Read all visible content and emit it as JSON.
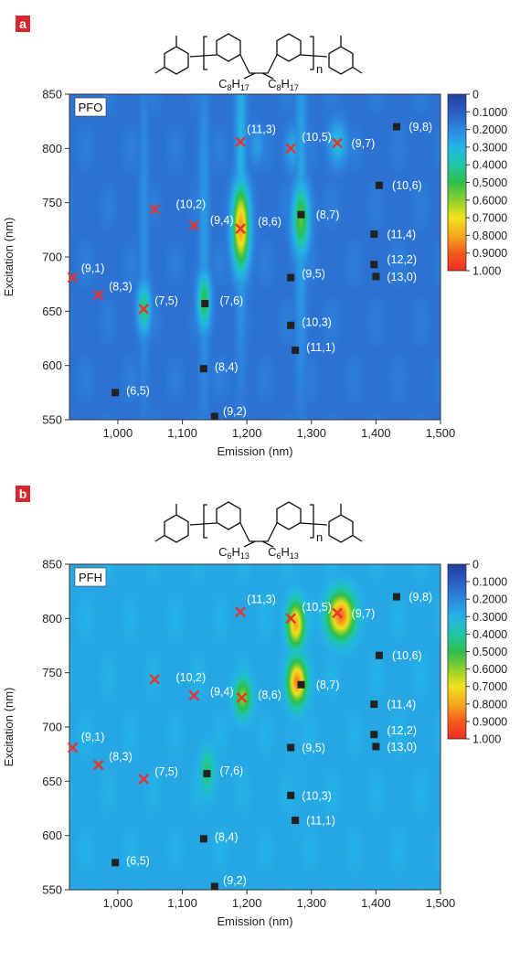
{
  "panels": [
    {
      "letter": "a",
      "sample_label": "PFO",
      "chem_subst": [
        "C8H17",
        "C8H17"
      ],
      "repeat_label": "n",
      "chart_data": {
        "type": "heatmap",
        "xlabel": "Emission (nm)",
        "ylabel": "Excitation (nm)",
        "xlim": [
          925,
          1500
        ],
        "ylim": [
          550,
          850
        ],
        "xticks": [
          1000,
          1100,
          1200,
          1300,
          1400,
          1500
        ],
        "xtick_labels": [
          "1,000",
          "1,100",
          "1,200",
          "1,300",
          "1,400",
          "1,500"
        ],
        "yticks": [
          550,
          600,
          650,
          700,
          750,
          800,
          850
        ],
        "ytick_labels": [
          "550",
          "600",
          "650",
          "700",
          "750",
          "800",
          "850"
        ],
        "colorbar": {
          "ticks": [
            0,
            0.1,
            0.2,
            0.3,
            0.4,
            0.5,
            0.6,
            0.7,
            0.8,
            0.9,
            1.0
          ],
          "tick_labels": [
            "0",
            "0.1000",
            "0.2000",
            "0.3000",
            "0.4000",
            "0.5000",
            "0.6000",
            "0.7000",
            "0.8000",
            "0.9000",
            "1.000"
          ]
        },
        "background_level": 0.15,
        "peaks": [
          {
            "x": 1190,
            "y": 728,
            "level": 0.82,
            "sx": 9,
            "sy": 26
          },
          {
            "x": 1283,
            "y": 735,
            "level": 0.55,
            "sx": 9,
            "sy": 22
          },
          {
            "x": 1133,
            "y": 660,
            "level": 0.5,
            "sx": 7,
            "sy": 18
          },
          {
            "x": 1040,
            "y": 653,
            "level": 0.45,
            "sx": 7,
            "sy": 16
          },
          {
            "x": 1340,
            "y": 805,
            "level": 0.33,
            "sx": 10,
            "sy": 14
          },
          {
            "x": 1270,
            "y": 800,
            "level": 0.28,
            "sx": 8,
            "sy": 14
          },
          {
            "x": 1215,
            "y": 803,
            "level": 0.25,
            "sx": 8,
            "sy": 12
          },
          {
            "x": 1190,
            "y": 800,
            "level": 0.3,
            "sx": 6,
            "sy": 120
          },
          {
            "x": 1283,
            "y": 760,
            "level": 0.27,
            "sx": 6,
            "sy": 120
          },
          {
            "x": 1133,
            "y": 720,
            "level": 0.24,
            "sx": 6,
            "sy": 110
          },
          {
            "x": 1040,
            "y": 720,
            "level": 0.22,
            "sx": 5,
            "sy": 110
          }
        ],
        "assignments": [
          {
            "label": "(9,1)",
            "x": 930,
            "y": 681,
            "marker": "cross",
            "lx": 943,
            "ly": 690
          },
          {
            "label": "(8,3)",
            "x": 970,
            "y": 665,
            "marker": "cross",
            "lx": 986,
            "ly": 673
          },
          {
            "label": "(7,5)",
            "x": 1040,
            "y": 652,
            "marker": "cross",
            "lx": 1057,
            "ly": 660
          },
          {
            "label": "(10,2)",
            "x": 1057,
            "y": 744,
            "marker": "cross",
            "lx": 1090,
            "ly": 749
          },
          {
            "label": "(9,4)",
            "x": 1118,
            "y": 729,
            "marker": "cross",
            "lx": 1143,
            "ly": 734
          },
          {
            "label": "(8,6)",
            "x": 1190,
            "y": 726,
            "marker": "cross",
            "lx": 1217,
            "ly": 733
          },
          {
            "label": "(11,3)",
            "x": 1190,
            "y": 806,
            "marker": "cross",
            "lx": 1200,
            "ly": 818
          },
          {
            "label": "(10,5)",
            "x": 1268,
            "y": 800,
            "marker": "cross",
            "lx": 1285,
            "ly": 811
          },
          {
            "label": "(9,7)",
            "x": 1340,
            "y": 805,
            "marker": "cross",
            "lx": 1362,
            "ly": 805
          },
          {
            "label": "(9,8)",
            "x": 1432,
            "y": 820,
            "marker": "square",
            "lx": 1451,
            "ly": 820
          },
          {
            "label": "(10,6)",
            "x": 1405,
            "y": 766,
            "marker": "square",
            "lx": 1425,
            "ly": 766
          },
          {
            "label": "(8,7)",
            "x": 1284,
            "y": 739,
            "marker": "square",
            "lx": 1307,
            "ly": 739
          },
          {
            "label": "(11,4)",
            "x": 1397,
            "y": 721,
            "marker": "square",
            "lx": 1417,
            "ly": 721
          },
          {
            "label": "(12,2)",
            "x": 1397,
            "y": 693,
            "marker": "square",
            "lx": 1417,
            "ly": 698
          },
          {
            "label": "(13,0)",
            "x": 1400,
            "y": 682,
            "marker": "square",
            "lx": 1417,
            "ly": 682
          },
          {
            "label": "(9,5)",
            "x": 1268,
            "y": 681,
            "marker": "square",
            "lx": 1285,
            "ly": 685
          },
          {
            "label": "(7,6)",
            "x": 1135,
            "y": 657,
            "marker": "square",
            "lx": 1158,
            "ly": 660
          },
          {
            "label": "(10,3)",
            "x": 1268,
            "y": 637,
            "marker": "square",
            "lx": 1285,
            "ly": 640
          },
          {
            "label": "(11,1)",
            "x": 1275,
            "y": 614,
            "marker": "square",
            "lx": 1292,
            "ly": 617
          },
          {
            "label": "(8,4)",
            "x": 1133,
            "y": 597,
            "marker": "square",
            "lx": 1150,
            "ly": 599
          },
          {
            "label": "(6,5)",
            "x": 996,
            "y": 575,
            "marker": "square",
            "lx": 1013,
            "ly": 577
          },
          {
            "label": "(9,2)",
            "x": 1150,
            "y": 553,
            "marker": "square",
            "lx": 1163,
            "ly": 558
          }
        ]
      }
    },
    {
      "letter": "b",
      "sample_label": "PFH",
      "chem_subst": [
        "C6H13",
        "C6H13"
      ],
      "repeat_label": "n",
      "chart_data": {
        "type": "heatmap",
        "xlabel": "Emission (nm)",
        "ylabel": "Excitation (nm)",
        "xlim": [
          925,
          1500
        ],
        "ylim": [
          550,
          850
        ],
        "xticks": [
          1000,
          1100,
          1200,
          1300,
          1400,
          1500
        ],
        "xtick_labels": [
          "1,000",
          "1,100",
          "1,200",
          "1,300",
          "1,400",
          "1,500"
        ],
        "yticks": [
          550,
          600,
          650,
          700,
          750,
          800,
          850
        ],
        "ytick_labels": [
          "550",
          "600",
          "650",
          "700",
          "750",
          "800",
          "850"
        ],
        "colorbar": {
          "ticks": [
            0,
            0.1,
            0.2,
            0.3,
            0.4,
            0.5,
            0.6,
            0.7,
            0.8,
            0.9,
            1.0
          ],
          "tick_labels": [
            "0",
            "0.1000",
            "0.2000",
            "0.3000",
            "0.4000",
            "0.5000",
            "0.6000",
            "0.7000",
            "0.8000",
            "0.9000",
            "1.000"
          ]
        },
        "background_level": 0.27,
        "peaks": [
          {
            "x": 1345,
            "y": 803,
            "level": 0.88,
            "sx": 14,
            "sy": 14
          },
          {
            "x": 1275,
            "y": 795,
            "level": 0.8,
            "sx": 9,
            "sy": 14
          },
          {
            "x": 1277,
            "y": 742,
            "level": 0.85,
            "sx": 10,
            "sy": 14
          },
          {
            "x": 1193,
            "y": 728,
            "level": 0.6,
            "sx": 9,
            "sy": 12
          },
          {
            "x": 1138,
            "y": 660,
            "level": 0.45,
            "sx": 8,
            "sy": 14
          },
          {
            "x": 1275,
            "y": 720,
            "level": 0.28,
            "sx": 14,
            "sy": 120
          },
          {
            "x": 1232,
            "y": 700,
            "level": 0.15,
            "sx": 40,
            "sy": 90
          }
        ],
        "assignments": [
          {
            "label": "(9,1)",
            "x": 930,
            "y": 681,
            "marker": "cross",
            "lx": 943,
            "ly": 691
          },
          {
            "label": "(8,3)",
            "x": 970,
            "y": 665,
            "marker": "cross",
            "lx": 986,
            "ly": 673
          },
          {
            "label": "(7,5)",
            "x": 1040,
            "y": 652,
            "marker": "cross",
            "lx": 1057,
            "ly": 659
          },
          {
            "label": "(10,2)",
            "x": 1057,
            "y": 744,
            "marker": "cross",
            "lx": 1090,
            "ly": 746
          },
          {
            "label": "(9,4)",
            "x": 1118,
            "y": 729,
            "marker": "cross",
            "lx": 1143,
            "ly": 733
          },
          {
            "label": "(8,6)",
            "x": 1192,
            "y": 727,
            "marker": "cross",
            "lx": 1217,
            "ly": 730
          },
          {
            "label": "(11,3)",
            "x": 1190,
            "y": 806,
            "marker": "cross",
            "lx": 1200,
            "ly": 818
          },
          {
            "label": "(10,5)",
            "x": 1268,
            "y": 800,
            "marker": "cross",
            "lx": 1285,
            "ly": 811
          },
          {
            "label": "(9,7)",
            "x": 1340,
            "y": 805,
            "marker": "cross",
            "lx": 1362,
            "ly": 805
          },
          {
            "label": "(9,8)",
            "x": 1432,
            "y": 820,
            "marker": "square",
            "lx": 1451,
            "ly": 820
          },
          {
            "label": "(10,6)",
            "x": 1405,
            "y": 766,
            "marker": "square",
            "lx": 1425,
            "ly": 766
          },
          {
            "label": "(8,7)",
            "x": 1284,
            "y": 739,
            "marker": "square",
            "lx": 1307,
            "ly": 739
          },
          {
            "label": "(11,4)",
            "x": 1397,
            "y": 721,
            "marker": "square",
            "lx": 1417,
            "ly": 721
          },
          {
            "label": "(12,2)",
            "x": 1397,
            "y": 693,
            "marker": "square",
            "lx": 1417,
            "ly": 697
          },
          {
            "label": "(13,0)",
            "x": 1400,
            "y": 682,
            "marker": "square",
            "lx": 1417,
            "ly": 682
          },
          {
            "label": "(9,5)",
            "x": 1268,
            "y": 681,
            "marker": "square",
            "lx": 1285,
            "ly": 681
          },
          {
            "label": "(7,6)",
            "x": 1138,
            "y": 657,
            "marker": "square",
            "lx": 1158,
            "ly": 660
          },
          {
            "label": "(10,3)",
            "x": 1268,
            "y": 637,
            "marker": "square",
            "lx": 1285,
            "ly": 637
          },
          {
            "label": "(11,1)",
            "x": 1275,
            "y": 614,
            "marker": "square",
            "lx": 1292,
            "ly": 614
          },
          {
            "label": "(8,4)",
            "x": 1133,
            "y": 597,
            "marker": "square",
            "lx": 1150,
            "ly": 599
          },
          {
            "label": "(6,5)",
            "x": 996,
            "y": 575,
            "marker": "square",
            "lx": 1013,
            "ly": 577
          },
          {
            "label": "(9,2)",
            "x": 1150,
            "y": 553,
            "marker": "square",
            "lx": 1163,
            "ly": 559
          }
        ]
      }
    }
  ],
  "colors": {
    "panel_letter_bg": "#d7282f",
    "cross_marker": "#e8322e",
    "square_marker": "#222222",
    "colormap": [
      "#243e9c",
      "#2a5cc4",
      "#2d88e0",
      "#24b3e6",
      "#1fc7a8",
      "#2ebe4c",
      "#8ccf2e",
      "#f2e21a",
      "#f7a81e",
      "#f25a1f",
      "#ee2c24"
    ]
  }
}
